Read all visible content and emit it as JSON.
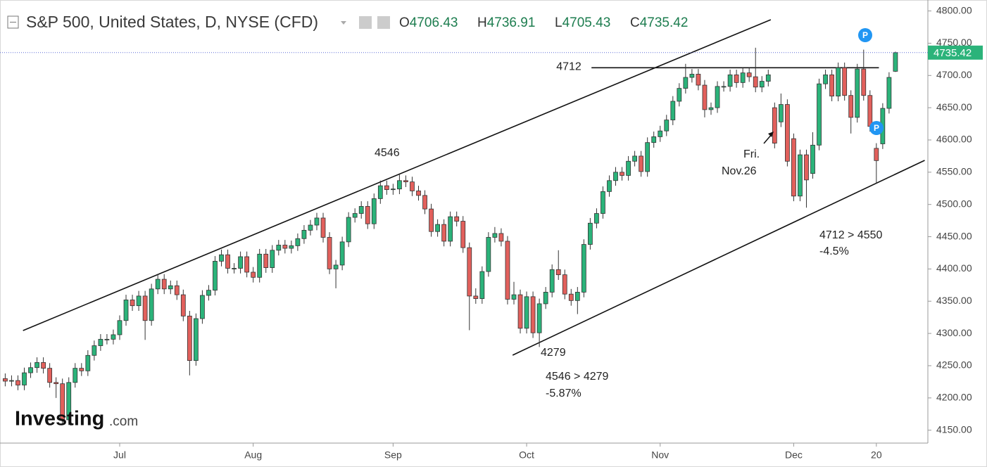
{
  "chart_data": {
    "type": "candlestick",
    "title": "S&P 500, United States, D, NYSE (CFD)",
    "ohlc_header": [
      {
        "label": "O",
        "value": "4706.43"
      },
      {
        "label": "H",
        "value": "4736.91"
      },
      {
        "label": "L",
        "value": "4705.43"
      },
      {
        "label": "C",
        "value": "4735.42"
      }
    ],
    "logo": [
      "Investing",
      ".com"
    ],
    "up_color": "#2bb37a",
    "down_color": "#e2605c",
    "last_price_color": "#2bb37a",
    "xlim": [
      -0.82,
      145.1
    ],
    "ylim": [
      4130,
      4817
    ],
    "yticks": [
      {
        "value": 4150,
        "label": "4150.00"
      },
      {
        "value": 4200,
        "label": "4200.00"
      },
      {
        "value": 4250,
        "label": "4250.00"
      },
      {
        "value": 4300,
        "label": "4300.00"
      },
      {
        "value": 4350,
        "label": "4350.00"
      },
      {
        "value": 4400,
        "label": "4400.00"
      },
      {
        "value": 4450,
        "label": "4450.00"
      },
      {
        "value": 4500,
        "label": "4500.00"
      },
      {
        "value": 4550,
        "label": "4550.00"
      },
      {
        "value": 4600,
        "label": "4600.00"
      },
      {
        "value": 4650,
        "label": "4650.00"
      },
      {
        "value": 4700,
        "label": "4700.00"
      },
      {
        "value": 4750,
        "label": "4750.00"
      },
      {
        "value": 4800,
        "label": "4800.00"
      }
    ],
    "xticks": [
      {
        "value": 18,
        "label": "Jul"
      },
      {
        "value": 39,
        "label": "Aug"
      },
      {
        "value": 61,
        "label": "Sep"
      },
      {
        "value": 82,
        "label": "Oct"
      },
      {
        "value": 103,
        "label": "Nov"
      },
      {
        "value": 124,
        "label": "Dec"
      },
      {
        "value": 137,
        "label": "20"
      }
    ],
    "open": [
      4230,
      4226,
      4227,
      4220,
      4239,
      4247,
      4255,
      4246,
      4224,
      4222,
      4166,
      4224,
      4246,
      4242,
      4266,
      4281,
      4291,
      4291,
      4298,
      4320,
      4352,
      4343,
      4358,
      4320,
      4369,
      4384,
      4369,
      4374,
      4360,
      4327,
      4258,
      4323,
      4359,
      4367,
      4412,
      4422,
      4401,
      4401,
      4419,
      4395,
      4387,
      4423,
      4402,
      4429,
      4437,
      4432,
      4436,
      4447,
      4460,
      4468,
      4479,
      4449,
      4400,
      4406,
      4442,
      4480,
      4486,
      4497,
      4470,
      4509,
      4529,
      4523,
      4524,
      4537,
      4535,
      4521,
      4514,
      4493,
      4458,
      4469,
      4443,
      4481,
      4474,
      4433,
      4358,
      4354,
      4396,
      4449,
      4455,
      4443,
      4353,
      4360,
      4308,
      4357,
      4301,
      4346,
      4364,
      4399,
      4391,
      4361,
      4351,
      4364,
      4438,
      4471,
      4486,
      4520,
      4537,
      4550,
      4545,
      4567,
      4575,
      4551,
      4596,
      4605,
      4614,
      4631,
      4660,
      4680,
      4697,
      4702,
      4685,
      4647,
      4650,
      4683,
      4683,
      4701,
      4689,
      4704,
      4698,
      4682,
      4691,
      4650,
      4628,
      4655,
      4602,
      4513,
      4577,
      4548,
      4592,
      4687,
      4701,
      4668,
      4712,
      4669,
      4635,
      4710,
      4669,
      4587,
      4594,
      4649,
      4706.43
    ],
    "high": [
      4238,
      4235,
      4235,
      4247,
      4255,
      4263,
      4263,
      4254,
      4232,
      4230,
      4232,
      4254,
      4254,
      4274,
      4289,
      4299,
      4299,
      4306,
      4328,
      4360,
      4360,
      4366,
      4366,
      4377,
      4392,
      4392,
      4382,
      4382,
      4368,
      4335,
      4331,
      4367,
      4375,
      4420,
      4430,
      4430,
      4409,
      4427,
      4427,
      4403,
      4431,
      4431,
      4437,
      4445,
      4445,
      4444,
      4455,
      4468,
      4476,
      4487,
      4487,
      4457,
      4414,
      4450,
      4488,
      4494,
      4505,
      4505,
      4517,
      4537,
      4537,
      4532,
      4546,
      4545,
      4543,
      4529,
      4522,
      4501,
      4477,
      4477,
      4489,
      4489,
      4482,
      4441,
      4370,
      4404,
      4457,
      4465,
      4463,
      4451,
      4380,
      4368,
      4365,
      4365,
      4354,
      4372,
      4407,
      4429,
      4399,
      4369,
      4372,
      4446,
      4479,
      4494,
      4528,
      4545,
      4558,
      4558,
      4575,
      4583,
      4583,
      4604,
      4613,
      4622,
      4639,
      4668,
      4688,
      4718,
      4710,
      4710,
      4693,
      4658,
      4691,
      4691,
      4709,
      4709,
      4712,
      4712,
      4743,
      4699,
      4709,
      4658,
      4672,
      4663,
      4610,
      4585,
      4585,
      4612,
      4695,
      4709,
      4709,
      4720,
      4720,
      4677,
      4718,
      4740,
      4677,
      4595,
      4657,
      4705,
      4736.91
    ],
    "low": [
      4218,
      4218,
      4212,
      4212,
      4231,
      4239,
      4238,
      4216,
      4200,
      4158,
      4158,
      4216,
      4234,
      4234,
      4258,
      4273,
      4283,
      4283,
      4290,
      4312,
      4335,
      4335,
      4290,
      4312,
      4361,
      4361,
      4361,
      4352,
      4319,
      4235,
      4250,
      4315,
      4351,
      4359,
      4404,
      4393,
      4393,
      4393,
      4387,
      4379,
      4379,
      4394,
      4394,
      4421,
      4424,
      4424,
      4428,
      4439,
      4452,
      4460,
      4441,
      4392,
      4370,
      4398,
      4434,
      4472,
      4478,
      4462,
      4462,
      4501,
      4515,
      4515,
      4516,
      4527,
      4513,
      4506,
      4485,
      4450,
      4450,
      4435,
      4435,
      4466,
      4425,
      4305,
      4346,
      4346,
      4388,
      4441,
      4435,
      4345,
      4345,
      4300,
      4300,
      4293,
      4279,
      4338,
      4356,
      4383,
      4353,
      4343,
      4330,
      4356,
      4430,
      4463,
      4478,
      4512,
      4529,
      4537,
      4537,
      4559,
      4543,
      4543,
      4588,
      4597,
      4606,
      4623,
      4652,
      4672,
      4689,
      4677,
      4635,
      4639,
      4642,
      4675,
      4675,
      4681,
      4681,
      4690,
      4674,
      4674,
      4683,
      4587,
      4620,
      4559,
      4505,
      4505,
      4495,
      4540,
      4584,
      4679,
      4660,
      4660,
      4661,
      4610,
      4627,
      4661,
      4613,
      4532,
      4586,
      4641,
      4705.43
    ],
    "close": [
      4226,
      4227,
      4220,
      4239,
      4247,
      4255,
      4246,
      4224,
      4222,
      4166,
      4224,
      4246,
      4242,
      4266,
      4281,
      4291,
      4291,
      4298,
      4320,
      4352,
      4343,
      4358,
      4320,
      4369,
      4384,
      4369,
      4374,
      4360,
      4327,
      4258,
      4323,
      4359,
      4367,
      4412,
      4422,
      4401,
      4401,
      4419,
      4395,
      4387,
      4423,
      4402,
      4429,
      4437,
      4432,
      4436,
      4447,
      4460,
      4468,
      4479,
      4449,
      4400,
      4406,
      4442,
      4480,
      4486,
      4497,
      4470,
      4509,
      4529,
      4523,
      4524,
      4537,
      4535,
      4521,
      4514,
      4493,
      4458,
      4469,
      4443,
      4481,
      4474,
      4433,
      4358,
      4354,
      4396,
      4449,
      4455,
      4443,
      4353,
      4360,
      4308,
      4357,
      4301,
      4346,
      4364,
      4399,
      4391,
      4361,
      4351,
      4364,
      4438,
      4471,
      4486,
      4520,
      4537,
      4550,
      4545,
      4567,
      4575,
      4551,
      4596,
      4605,
      4614,
      4631,
      4660,
      4680,
      4697,
      4702,
      4685,
      4647,
      4650,
      4683,
      4683,
      4701,
      4689,
      4704,
      4698,
      4682,
      4691,
      4701,
      4595,
      4655,
      4567,
      4513,
      4577,
      4538,
      4592,
      4687,
      4701,
      4668,
      4712,
      4669,
      4635,
      4710,
      4669,
      4621,
      4568,
      4649,
      4697,
      4735.42
    ],
    "hlines": [
      {
        "value": 4712,
        "x": [
          92.2,
          137.4
        ]
      }
    ],
    "trendlines": [
      {
        "x": [
          2.8,
          120.4
        ],
        "y": [
          4304.5,
          4786.5
        ]
      },
      {
        "x": [
          79.8,
          144.6
        ],
        "y": [
          4266.3,
          4568.4
        ]
      }
    ],
    "notes": [
      "4546",
      "4279",
      "4546 > 4279",
      "-5.87%",
      "4712 > 4550",
      "-4.5%",
      "Fri.",
      "Nov.26"
    ]
  }
}
